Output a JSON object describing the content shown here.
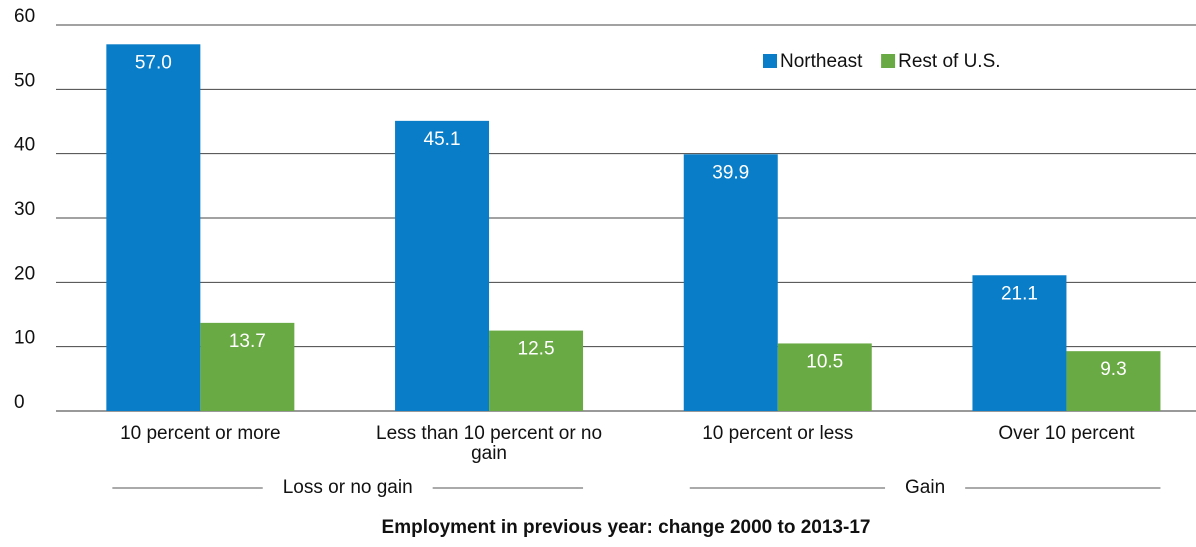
{
  "chart_data": {
    "type": "bar",
    "x_label": "Employment in previous year: change 2000 to 2013-17",
    "categories": [
      "10 percent or more",
      "Less than 10 percent or no gain",
      "10 percent or less",
      "Over 10 percent"
    ],
    "x_groups": [
      "Loss or no gain",
      "Loss or no gain",
      "Gain",
      "Gain"
    ],
    "series": [
      {
        "name": "Northeast",
        "color": "#0a7dc8",
        "values": [
          57,
          45.1,
          39.9,
          21.1
        ],
        "value_labels": [
          "57.0",
          "45.1",
          "39.9",
          "21.1"
        ]
      },
      {
        "name": "Rest of U.S.",
        "color": "#6aaa45",
        "values": [
          13.7,
          12.5,
          10.5,
          9.3
        ],
        "value_labels": [
          "13.7",
          "12.5",
          "10.5",
          "9.3"
        ]
      }
    ],
    "ylim": [
      0,
      60
    ],
    "yticks": [
      0,
      10,
      20,
      30,
      40,
      50,
      60
    ],
    "grid": true,
    "legend": "top-right"
  }
}
